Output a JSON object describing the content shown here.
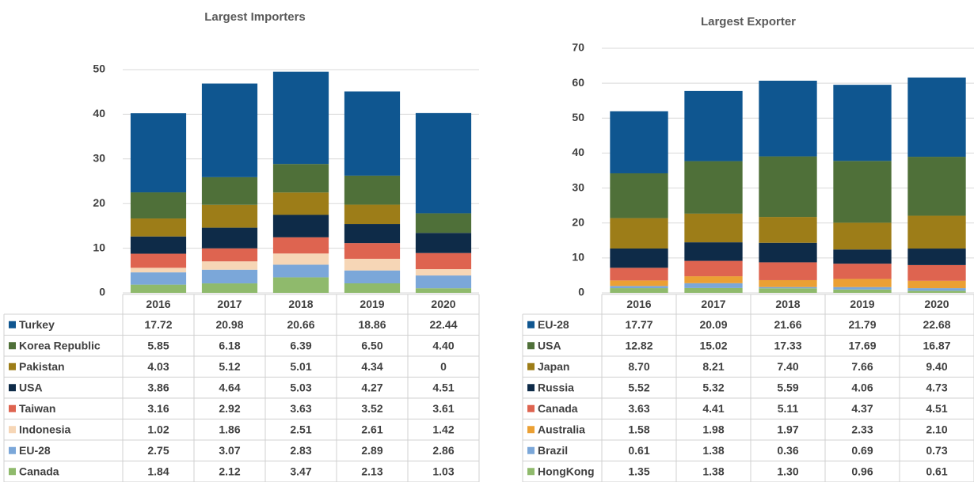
{
  "chart_data": [
    {
      "type": "stacked_bar",
      "title": "Largest Importers",
      "categories": [
        "2016",
        "2017",
        "2018",
        "2019",
        "2020"
      ],
      "ylim": [
        0,
        50
      ],
      "yticks": [
        0,
        10,
        20,
        30,
        40,
        50
      ],
      "grid": true,
      "series": [
        {
          "name": "Turkey",
          "color": "#0f5690",
          "values": [
            17.72,
            20.98,
            20.66,
            18.86,
            22.44
          ],
          "value_labels": [
            "17.72",
            "20.98",
            "20.66",
            "18.86",
            "22.44"
          ]
        },
        {
          "name": "Korea Republic",
          "color": "#4f7039",
          "values": [
            5.85,
            6.18,
            6.39,
            6.5,
            4.4
          ],
          "value_labels": [
            "5.85",
            "6.18",
            "6.39",
            "6.50",
            "4.40"
          ]
        },
        {
          "name": "Pakistan",
          "color": "#9d7d18",
          "values": [
            4.03,
            5.12,
            5.01,
            4.34,
            0
          ],
          "value_labels": [
            "4.03",
            "5.12",
            "5.01",
            "4.34",
            "0"
          ]
        },
        {
          "name": "USA",
          "color": "#0e2b48",
          "values": [
            3.86,
            4.64,
            5.03,
            4.27,
            4.51
          ],
          "value_labels": [
            "3.86",
            "4.64",
            "5.03",
            "4.27",
            "4.51"
          ]
        },
        {
          "name": "Taiwan",
          "color": "#de6450",
          "values": [
            3.16,
            2.92,
            3.63,
            3.52,
            3.61
          ],
          "value_labels": [
            "3.16",
            "2.92",
            "3.63",
            "3.52",
            "3.61"
          ]
        },
        {
          "name": "Indonesia",
          "color": "#f6d6b6",
          "values": [
            1.02,
            1.86,
            2.51,
            2.61,
            1.42
          ],
          "value_labels": [
            "1.02",
            "1.86",
            "2.51",
            "2.61",
            "1.42"
          ]
        },
        {
          "name": "EU-28",
          "color": "#7ba7d9",
          "values": [
            2.75,
            3.07,
            2.83,
            2.89,
            2.86
          ],
          "value_labels": [
            "2.75",
            "3.07",
            "2.83",
            "2.89",
            "2.86"
          ]
        },
        {
          "name": "Canada",
          "color": "#8fba6c",
          "values": [
            1.84,
            2.12,
            3.47,
            2.13,
            1.03
          ],
          "value_labels": [
            "1.84",
            "2.12",
            "3.47",
            "2.13",
            "1.03"
          ]
        }
      ]
    },
    {
      "type": "stacked_bar",
      "title": "Largest Exporter",
      "categories": [
        "2016",
        "2017",
        "2018",
        "2019",
        "2020"
      ],
      "ylim": [
        0,
        70
      ],
      "yticks": [
        0,
        10,
        20,
        30,
        40,
        50,
        60,
        70
      ],
      "grid": true,
      "series": [
        {
          "name": "EU-28",
          "color": "#0f5690",
          "values": [
            17.77,
            20.09,
            21.66,
            21.79,
            22.68
          ],
          "value_labels": [
            "17.77",
            "20.09",
            "21.66",
            "21.79",
            "22.68"
          ]
        },
        {
          "name": "USA",
          "color": "#4f7039",
          "values": [
            12.82,
            15.02,
            17.33,
            17.69,
            16.87
          ],
          "value_labels": [
            "12.82",
            "15.02",
            "17.33",
            "17.69",
            "16.87"
          ]
        },
        {
          "name": "Japan",
          "color": "#9d7d18",
          "values": [
            8.7,
            8.21,
            7.4,
            7.66,
            9.4
          ],
          "value_labels": [
            "8.70",
            "8.21",
            "7.40",
            "7.66",
            "9.40"
          ]
        },
        {
          "name": "Russia",
          "color": "#0e2b48",
          "values": [
            5.52,
            5.32,
            5.59,
            4.06,
            4.73
          ],
          "value_labels": [
            "5.52",
            "5.32",
            "5.59",
            "4.06",
            "4.73"
          ]
        },
        {
          "name": "Canada",
          "color": "#de6450",
          "values": [
            3.63,
            4.41,
            5.11,
            4.37,
            4.51
          ],
          "value_labels": [
            "3.63",
            "4.41",
            "5.11",
            "4.37",
            "4.51"
          ]
        },
        {
          "name": "Australia",
          "color": "#eba034",
          "values": [
            1.58,
            1.98,
            1.97,
            2.33,
            2.1
          ],
          "value_labels": [
            "1.58",
            "1.98",
            "1.97",
            "2.33",
            "2.10"
          ]
        },
        {
          "name": "Brazil",
          "color": "#7ba7d9",
          "values": [
            0.61,
            1.38,
            0.36,
            0.69,
            0.73
          ],
          "value_labels": [
            "0.61",
            "1.38",
            "0.36",
            "0.69",
            "0.73"
          ]
        },
        {
          "name": "HongKong",
          "color": "#8fba6c",
          "values": [
            1.35,
            1.38,
            1.3,
            0.96,
            0.61
          ],
          "value_labels": [
            "1.35",
            "1.38",
            "1.30",
            "0.96",
            "0.61"
          ]
        }
      ]
    }
  ]
}
